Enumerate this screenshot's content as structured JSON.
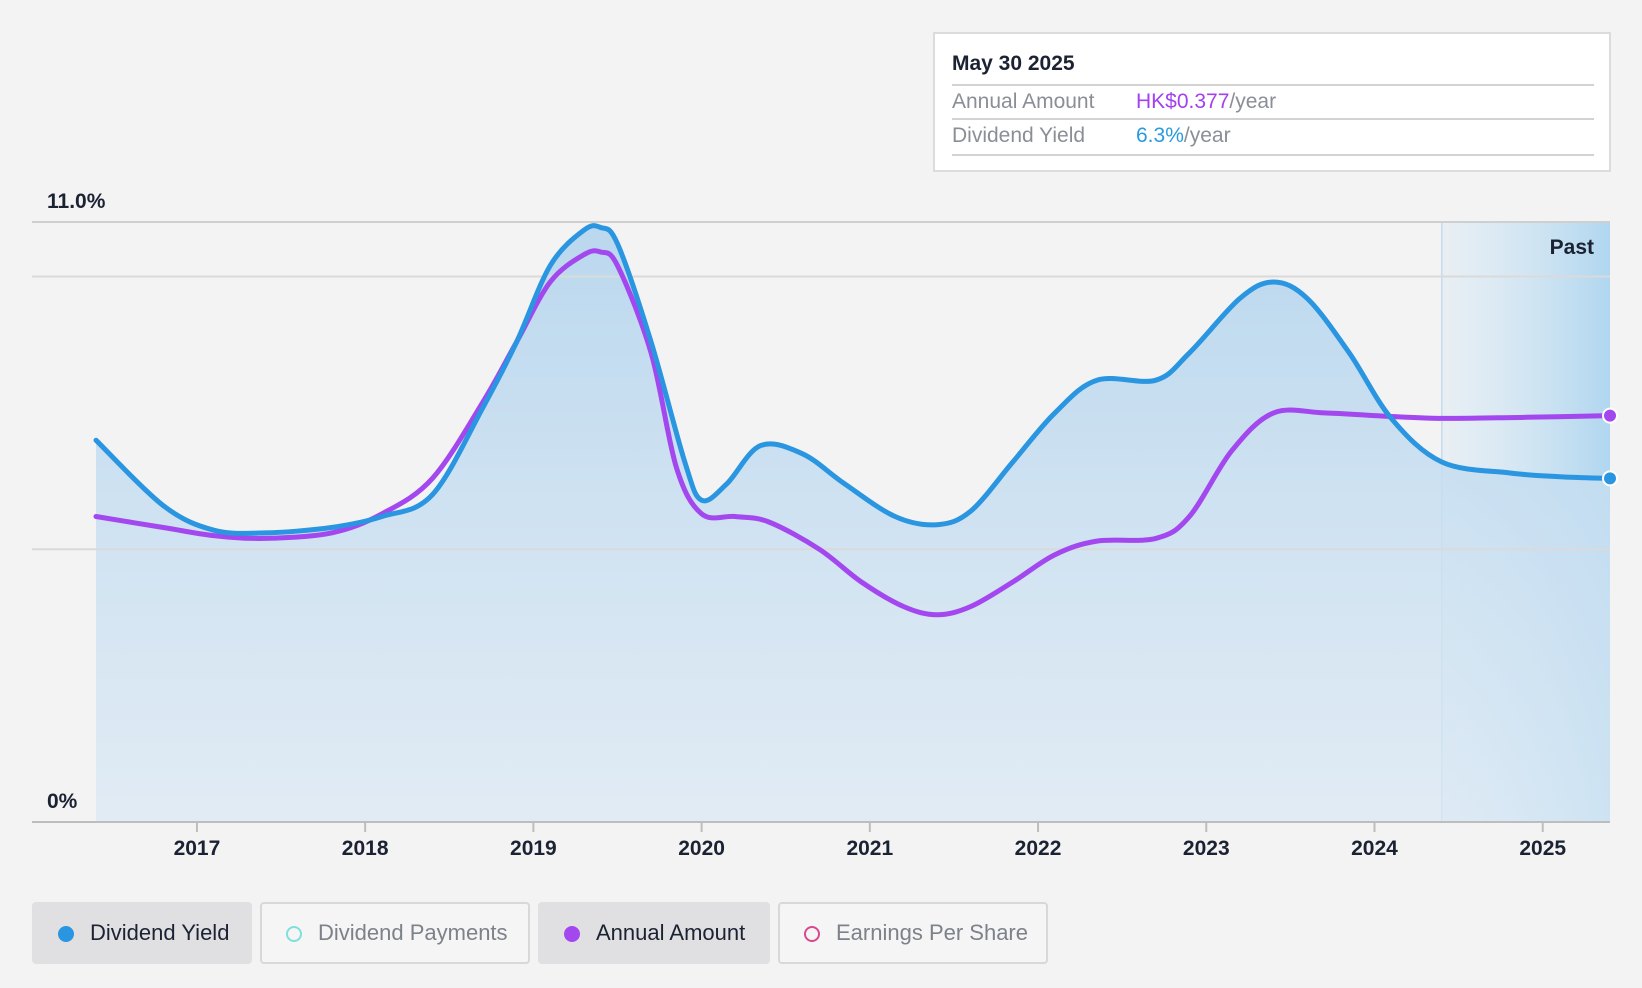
{
  "tooltip": {
    "date": "May 30 2025",
    "rows": [
      {
        "label": "Annual Amount",
        "value": "HK$0.377",
        "unit": "/year"
      },
      {
        "label": "Dividend Yield",
        "value": "6.3%",
        "unit": "/year"
      }
    ]
  },
  "legend": [
    {
      "label": "Dividend Yield",
      "active": true,
      "color": "#2a95e0",
      "filled": true
    },
    {
      "label": "Dividend Payments",
      "active": false,
      "color": "#7ee0dc",
      "filled": false
    },
    {
      "label": "Annual Amount",
      "active": true,
      "color": "#a347ef",
      "filled": true
    },
    {
      "label": "Earnings Per Share",
      "active": false,
      "color": "#d84a8e",
      "filled": false
    }
  ],
  "colors": {
    "yield_line": "#2a95e0",
    "annual_line": "#a347ef",
    "area_fill": "#c4dcef",
    "past_band": "#d6e8f5"
  },
  "chart_data": {
    "type": "line",
    "ylim": [
      0,
      11.0
    ],
    "ytick_labels": [
      "11.0%",
      "0%"
    ],
    "ylabel_unit": "%",
    "past_label": "Past",
    "past_start": 2024.4,
    "xlim": [
      2016.4,
      2025.4
    ],
    "x_ticks": [
      2017,
      2018,
      2019,
      2020,
      2021,
      2022,
      2023,
      2024,
      2025
    ],
    "series": [
      {
        "name": "Dividend Yield",
        "points": [
          [
            2016.4,
            7.0
          ],
          [
            2016.8,
            5.8
          ],
          [
            2017.1,
            5.35
          ],
          [
            2017.4,
            5.3
          ],
          [
            2017.8,
            5.4
          ],
          [
            2018.1,
            5.6
          ],
          [
            2018.4,
            6.0
          ],
          [
            2018.7,
            7.6
          ],
          [
            2018.9,
            8.8
          ],
          [
            2019.1,
            10.2
          ],
          [
            2019.3,
            10.85
          ],
          [
            2019.4,
            10.9
          ],
          [
            2019.5,
            10.6
          ],
          [
            2019.7,
            8.8
          ],
          [
            2019.9,
            6.6
          ],
          [
            2020.0,
            5.9
          ],
          [
            2020.15,
            6.2
          ],
          [
            2020.35,
            6.9
          ],
          [
            2020.6,
            6.75
          ],
          [
            2020.85,
            6.2
          ],
          [
            2021.15,
            5.6
          ],
          [
            2021.4,
            5.45
          ],
          [
            2021.6,
            5.7
          ],
          [
            2021.85,
            6.6
          ],
          [
            2022.1,
            7.5
          ],
          [
            2022.35,
            8.1
          ],
          [
            2022.7,
            8.1
          ],
          [
            2022.9,
            8.6
          ],
          [
            2023.2,
            9.6
          ],
          [
            2023.4,
            9.9
          ],
          [
            2023.6,
            9.6
          ],
          [
            2023.85,
            8.6
          ],
          [
            2024.1,
            7.4
          ],
          [
            2024.4,
            6.6
          ],
          [
            2024.8,
            6.4
          ],
          [
            2025.1,
            6.33
          ],
          [
            2025.4,
            6.3
          ]
        ]
      },
      {
        "name": "Annual Amount",
        "points": [
          [
            2016.4,
            5.6
          ],
          [
            2016.8,
            5.4
          ],
          [
            2017.1,
            5.25
          ],
          [
            2017.4,
            5.2
          ],
          [
            2017.8,
            5.3
          ],
          [
            2018.1,
            5.65
          ],
          [
            2018.4,
            6.3
          ],
          [
            2018.7,
            7.7
          ],
          [
            2018.9,
            8.8
          ],
          [
            2019.1,
            9.9
          ],
          [
            2019.3,
            10.4
          ],
          [
            2019.4,
            10.45
          ],
          [
            2019.5,
            10.2
          ],
          [
            2019.7,
            8.6
          ],
          [
            2019.85,
            6.5
          ],
          [
            2020.0,
            5.65
          ],
          [
            2020.2,
            5.6
          ],
          [
            2020.4,
            5.5
          ],
          [
            2020.7,
            5.0
          ],
          [
            2020.95,
            4.4
          ],
          [
            2021.2,
            3.95
          ],
          [
            2021.4,
            3.8
          ],
          [
            2021.6,
            3.95
          ],
          [
            2021.85,
            4.4
          ],
          [
            2022.1,
            4.9
          ],
          [
            2022.35,
            5.15
          ],
          [
            2022.7,
            5.2
          ],
          [
            2022.9,
            5.6
          ],
          [
            2023.15,
            6.8
          ],
          [
            2023.4,
            7.5
          ],
          [
            2023.7,
            7.5
          ],
          [
            2024.0,
            7.45
          ],
          [
            2024.4,
            7.4
          ],
          [
            2024.9,
            7.42
          ],
          [
            2025.4,
            7.45
          ]
        ]
      }
    ]
  }
}
